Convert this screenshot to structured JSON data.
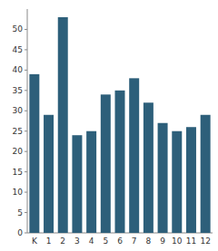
{
  "chart_data": {
    "type": "bar",
    "categories": [
      "K",
      "1",
      "2",
      "3",
      "4",
      "5",
      "6",
      "7",
      "8",
      "9",
      "10",
      "11",
      "12"
    ],
    "values": [
      39,
      29,
      53,
      24,
      25,
      34,
      35,
      38,
      32,
      27,
      25,
      26,
      29
    ],
    "color": "#2d5f7a",
    "ylim": [
      0,
      55
    ],
    "yticks": [
      0,
      5,
      10,
      15,
      20,
      25,
      30,
      35,
      40,
      45,
      50
    ],
    "grid": false
  }
}
